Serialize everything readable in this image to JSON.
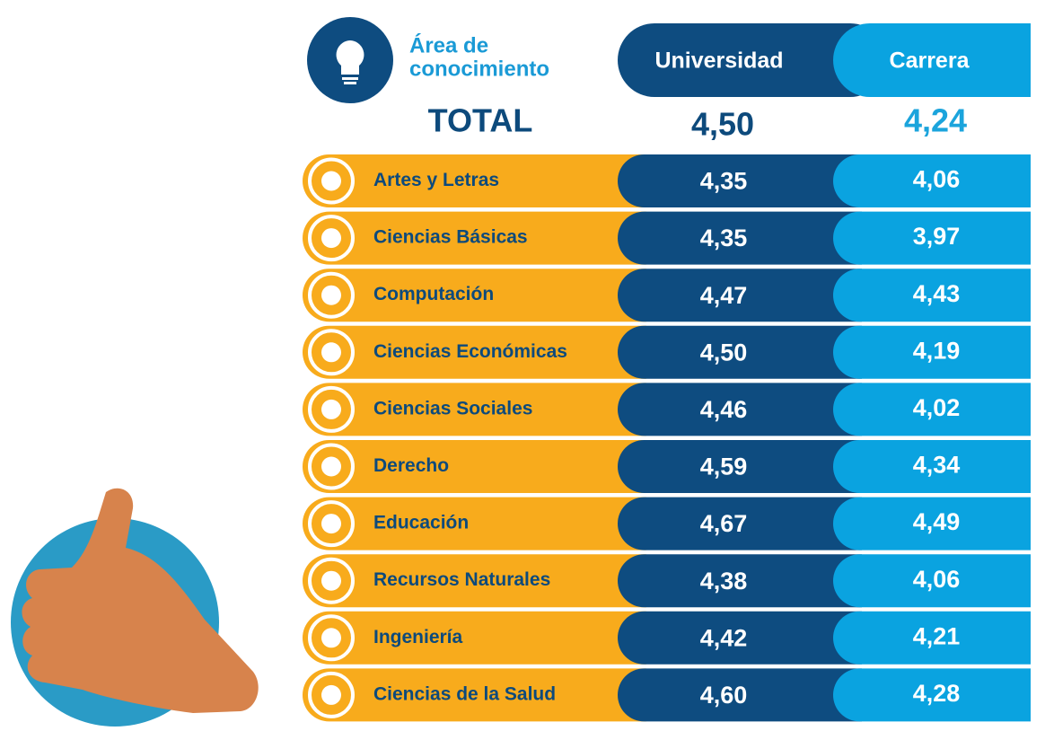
{
  "header": {
    "title_lines": [
      "Área de",
      "conocimiento"
    ],
    "columns": [
      "Universidad",
      "Carrera"
    ]
  },
  "total": {
    "label": "TOTAL",
    "values": [
      "4,50",
      "4,24"
    ]
  },
  "table": {
    "rows": [
      [
        "Artes y Letras",
        "4,35",
        "4,06"
      ],
      [
        "Ciencias Básicas",
        "4,35",
        "3,97"
      ],
      [
        "Computación",
        "4,47",
        "4,43"
      ],
      [
        "Ciencias Económicas",
        "4,50",
        "4,19"
      ],
      [
        "Ciencias Sociales",
        "4,46",
        "4,02"
      ],
      [
        "Derecho",
        "4,59",
        "4,34"
      ],
      [
        "Educación",
        "4,67",
        "4,49"
      ],
      [
        "Recursos Naturales",
        "4,38",
        "4,06"
      ],
      [
        "Ingeniería",
        "4,42",
        "4,21"
      ],
      [
        "Ciencias de la Salud",
        "4,60",
        "4,28"
      ]
    ]
  }
}
